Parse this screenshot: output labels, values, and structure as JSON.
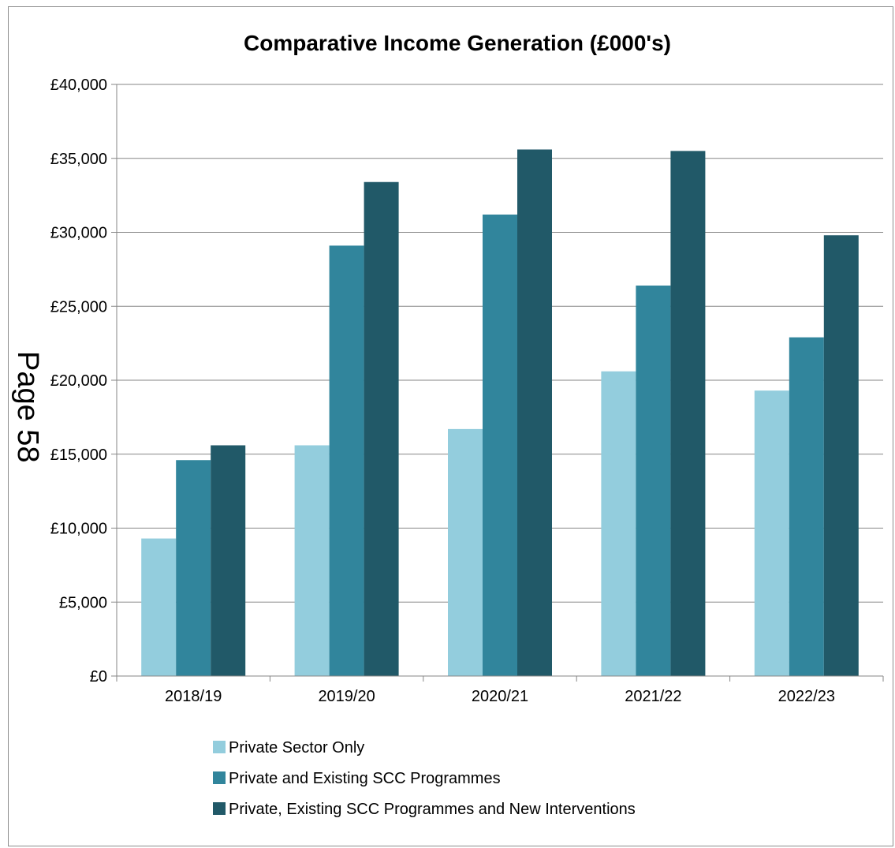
{
  "page_marker": "Page 58",
  "chart_data": {
    "type": "bar",
    "title": "Comparative Income Generation (£000's)",
    "xlabel": "",
    "ylabel": "",
    "categories": [
      "2018/19",
      "2019/20",
      "2020/21",
      "2021/22",
      "2022/23"
    ],
    "ylim": [
      0,
      40000
    ],
    "yticks": [
      0,
      5000,
      10000,
      15000,
      20000,
      25000,
      30000,
      35000,
      40000
    ],
    "ytick_labels": [
      "£0",
      "£5,000",
      "£10,000",
      "£15,000",
      "£20,000",
      "£25,000",
      "£30,000",
      "£35,000",
      "£40,000"
    ],
    "grid": true,
    "legend_position": "bottom",
    "series": [
      {
        "name": "Private Sector Only",
        "color": "#93cddd",
        "values": [
          9300,
          15600,
          16700,
          20600,
          19300
        ]
      },
      {
        "name": "Private and Existing SCC Programmes",
        "color": "#31859c",
        "values": [
          14600,
          29100,
          31200,
          26400,
          22900
        ]
      },
      {
        "name": "Private, Existing SCC Programmes and New Interventions",
        "color": "#215968",
        "values": [
          15600,
          33400,
          35600,
          35500,
          29800
        ]
      }
    ]
  }
}
